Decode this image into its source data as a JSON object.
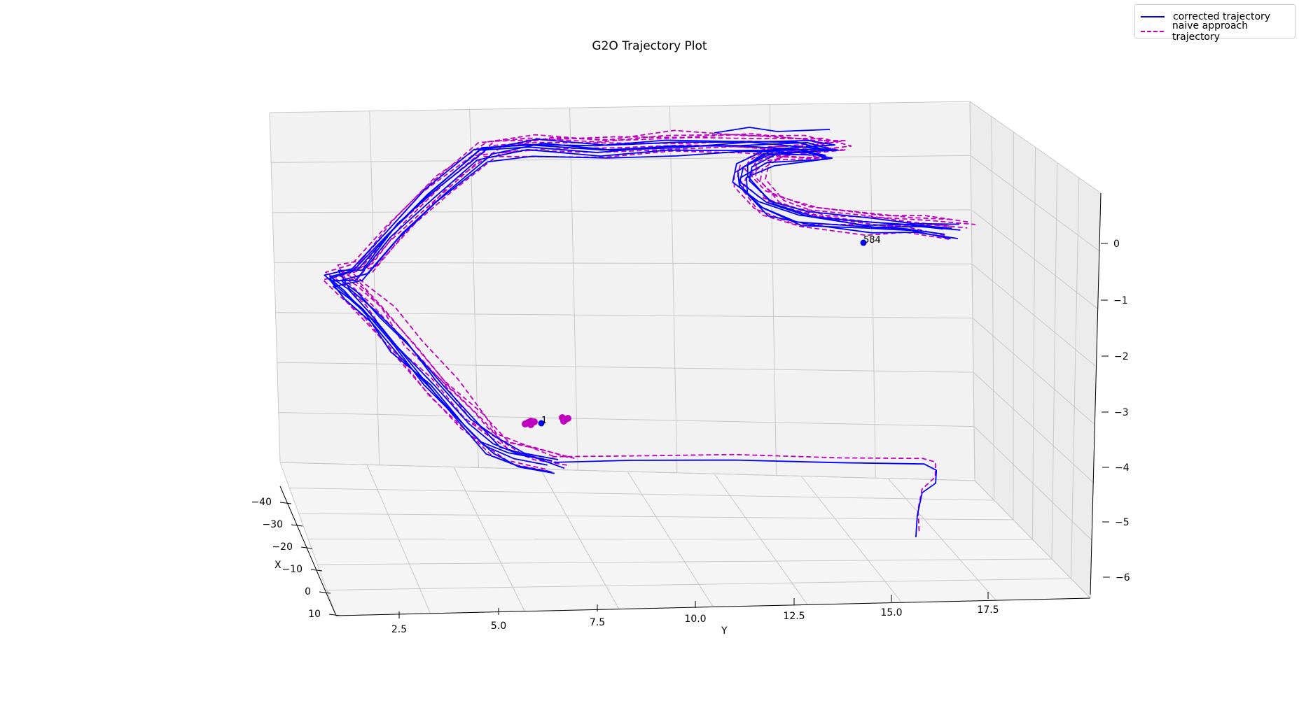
{
  "chart_data": {
    "type": "line",
    "title": "G2O Trajectory Plot",
    "xlabel": "X",
    "ylabel": "Y",
    "zlabel": "",
    "xticks": [
      "−40",
      "−30",
      "−20",
      "−10",
      "0",
      "10"
    ],
    "yticks": [
      "2.5",
      "5.0",
      "7.5",
      "10.0",
      "12.5",
      "15.0",
      "17.5"
    ],
    "zticks": [
      "0",
      "−1",
      "−2",
      "−3",
      "−4",
      "−5",
      "−6"
    ],
    "grid": true,
    "legend_position": "top-right",
    "series": [
      {
        "name": "corrected trajectory",
        "color": "#0000ff",
        "style": "solid"
      },
      {
        "name": "naive approach trajectory",
        "color": "#bf00bf",
        "style": "dashed"
      }
    ],
    "annotations": [
      {
        "text": "1",
        "color": "#0000ff"
      },
      {
        "text": "584",
        "color": "#0000ff"
      }
    ]
  }
}
